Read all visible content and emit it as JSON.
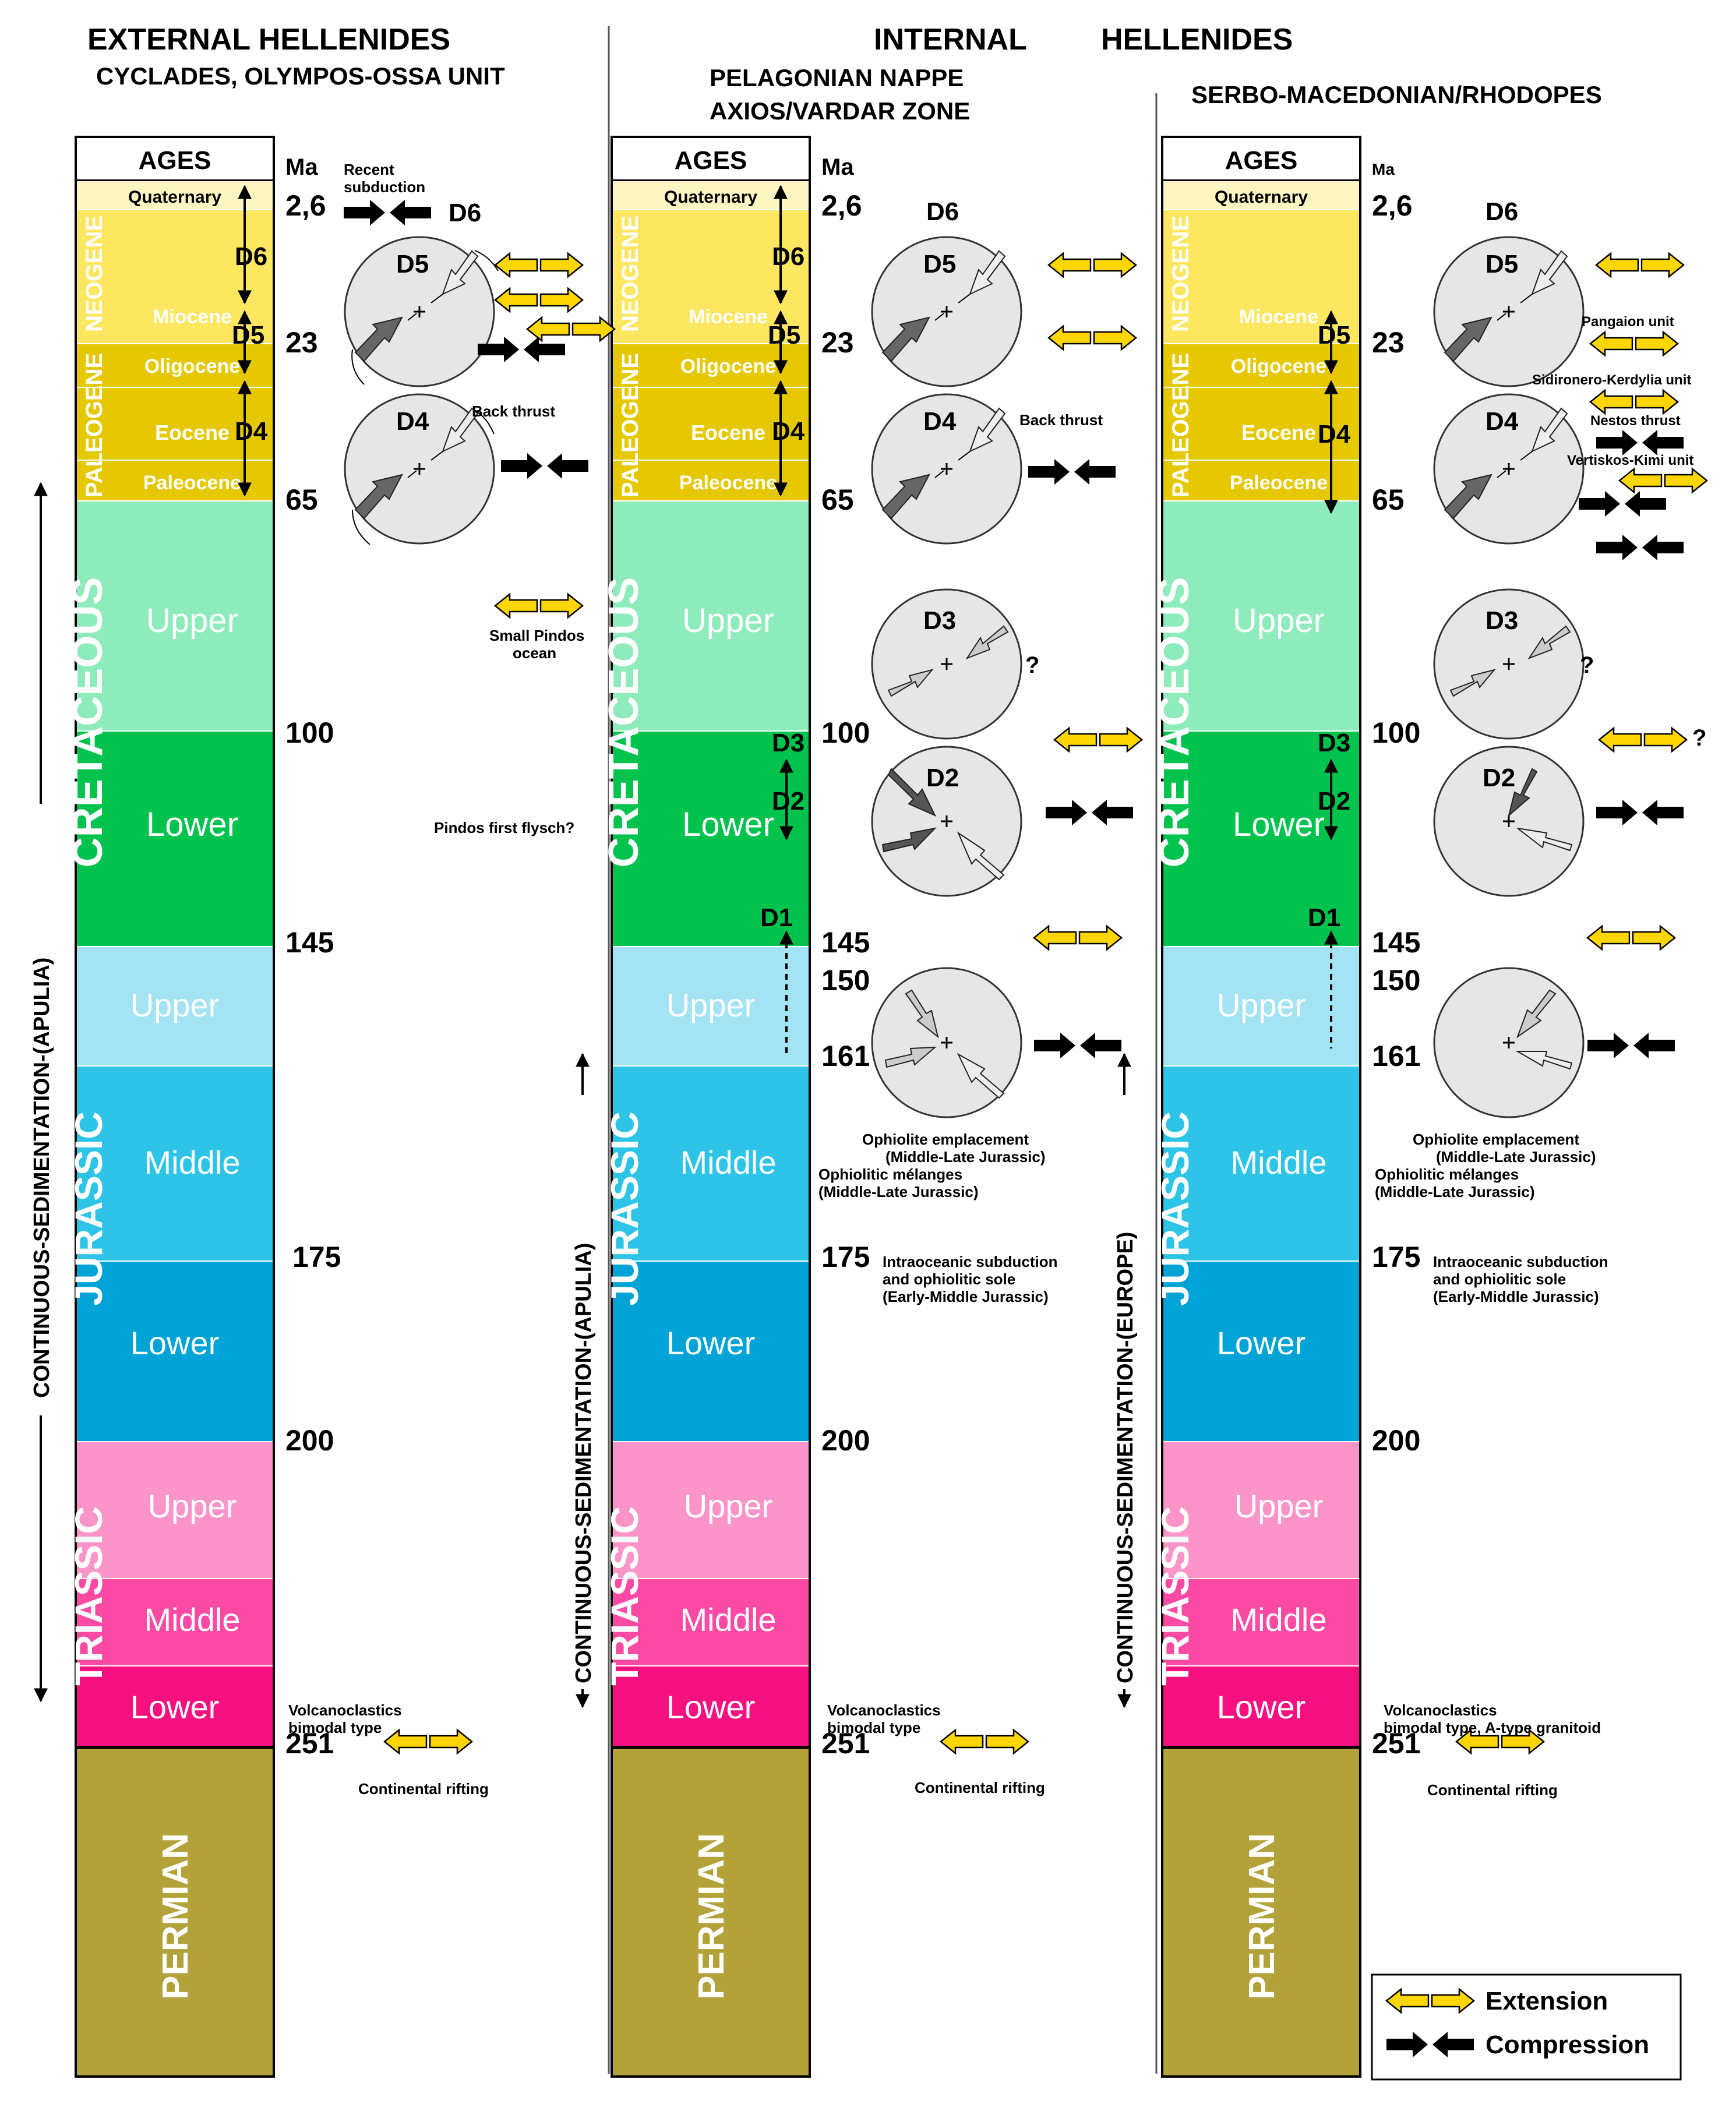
{
  "headers": {
    "external_title": "EXTERNAL HELLENIDES",
    "external_sub": "CYCLADES, OLYMPOS-OSSA UNIT",
    "internal_title_a": "INTERNAL",
    "internal_title_b": "HELLENIDES",
    "col2_sub1": "PELAGONIAN NAPPE",
    "col2_sub2": "AXIOS/VARDAR ZONE",
    "col3_sub": "SERBO-MACEDONIAN/RHODOPES"
  },
  "ages_label": "AGES",
  "ma_label": "Ma",
  "periods": [
    {
      "key": "neogene",
      "label": "NEOGENE"
    },
    {
      "key": "paleogene",
      "label": "PALEOGENE"
    },
    {
      "key": "cretaceous",
      "label": "CRETACEOUS"
    },
    {
      "key": "jurassic",
      "label": "JURASSIC"
    },
    {
      "key": "triassic",
      "label": "TRIASSIC"
    },
    {
      "key": "permian",
      "label": "PERMIAN"
    }
  ],
  "epochs": {
    "quaternary": "Quaternary",
    "miocene": "Miocene",
    "oligocene": "Oligocene",
    "eocene": "Eocene",
    "paleocene": "Paleocene",
    "upper": "Upper",
    "middle": "Middle",
    "lower": "Lower"
  },
  "colors": {
    "quaternary": "#fdf5c2",
    "neogene": "#fde660",
    "paleogene": "#e5c800",
    "cretaceous_upper": "#8eecbc",
    "cretaceous_lower": "#00c34e",
    "jurassic_upper": "#a3e3f3",
    "jurassic_middle": "#2ec4e8",
    "jurassic_lower": "#00a3d6",
    "triassic_upper": "#fb95c9",
    "triassic_middle": "#fb4aa4",
    "triassic_lower": "#f7107f",
    "permian": "#b3a23a",
    "extension_arrow": "#ffd600",
    "compression_arrow": "#000000"
  },
  "ma_values": [
    "2,6",
    "23",
    "65",
    "100",
    "145",
    "150",
    "161",
    "175",
    "200",
    "251"
  ],
  "deformation_phases": [
    "D1",
    "D2",
    "D3",
    "D4",
    "D5",
    "D6"
  ],
  "vertical_labels": {
    "col1": "CONTINUOUS-SEDIMENTATION-(APULIA)",
    "col2": "CONTINUOUS-SEDIMENTATION-(APULIA)",
    "col3": "CONTINUOUS-SEDIMENTATION-(EUROPE)"
  },
  "annotations": {
    "recent_subduction_1": "Recent",
    "recent_subduction_2": "subduction",
    "back_thrust": "Back thrust",
    "small_pindos_1": "Small Pindos",
    "small_pindos_2": "ocean",
    "pindos_flysch": "Pindos first flysch?",
    "volcano_1": "Volcanoclastics",
    "volcano_2": "bimodal type",
    "volcano_3_col3": "bimodal type, A-type granitoid",
    "continental_rifting": "Continental rifting",
    "ophiolite_emp_1": "Ophiolite emplacement",
    "ophiolite_emp_2": "(Middle-Late Jurassic)",
    "ophiolitic_mel_1": "Ophiolitic mélanges",
    "ophiolitic_mel_2": "(Middle-Late Jurassic)",
    "intraoceanic_1": "Intraoceanic subduction",
    "intraoceanic_2": "and ophiolitic sole",
    "intraoceanic_3": "(Early-Middle Jurassic)",
    "pangaion": "Pangaion unit",
    "sidironero": "Sidironero-Kerdylia unit",
    "nestos": "Nestos thrust",
    "vertiskos": "Vertiskos-Kimi unit",
    "question": "?"
  },
  "legend": {
    "extension": "Extension",
    "compression": "Compression"
  }
}
